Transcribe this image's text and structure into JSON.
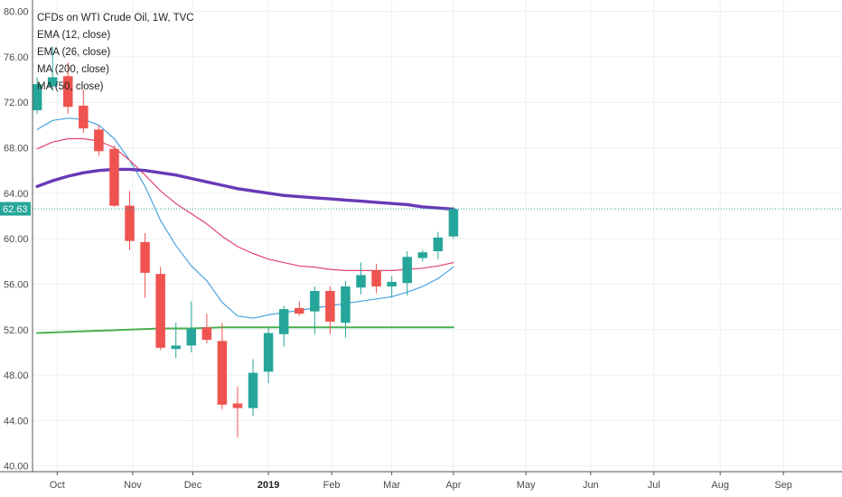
{
  "legend": [
    "CFDs on WTI Crude Oil, 1W, TVC",
    "EMA (12, close)",
    "EMA (26, close)",
    "MA (200, close)",
    "MA (50, close)"
  ],
  "colors": {
    "up": "#26a69a",
    "down": "#ef5350",
    "ema12": "#4aa3df",
    "ema26": "#e0456e",
    "ma200": "#4caf50",
    "ma50": "#673ab7",
    "price_line": "#26a69a",
    "grid": "#eceff1",
    "axis": "#555555"
  },
  "last_price_label": "62.63",
  "chart_data": {
    "type": "candlestick",
    "title": "CFDs on WTI Crude Oil, 1W, TVC",
    "ylim": [
      39.5,
      81
    ],
    "y_ticks": [
      "40.00",
      "44.00",
      "48.00",
      "52.00",
      "56.00",
      "60.00",
      "64.00",
      "68.00",
      "72.00",
      "76.00",
      "80.00"
    ],
    "x_ticks": [
      {
        "label": "Oct",
        "x": 1.3
      },
      {
        "label": "Nov",
        "x": 6.2
      },
      {
        "label": "Dec",
        "x": 10.1
      },
      {
        "label": "2019",
        "x": 15.0,
        "bold": true
      },
      {
        "label": "Feb",
        "x": 19.1
      },
      {
        "label": "Mar",
        "x": 23.0
      },
      {
        "label": "Apr",
        "x": 27.0
      },
      {
        "label": "May",
        "x": 31.7
      },
      {
        "label": "Jun",
        "x": 35.9
      },
      {
        "label": "Jul",
        "x": 40.0
      },
      {
        "label": "Aug",
        "x": 44.3
      },
      {
        "label": "Sep",
        "x": 48.4
      }
    ],
    "xlim": [
      -0.3,
      52.2
    ],
    "last_price": 62.63,
    "candles": [
      {
        "x": 0,
        "o": 71.3,
        "h": 74.2,
        "l": 71.0,
        "c": 73.6
      },
      {
        "x": 1,
        "o": 73.4,
        "h": 76.9,
        "l": 73.0,
        "c": 74.2
      },
      {
        "x": 2,
        "o": 74.3,
        "h": 75.5,
        "l": 71.0,
        "c": 71.6
      },
      {
        "x": 3,
        "o": 71.7,
        "h": 73.1,
        "l": 69.3,
        "c": 69.7
      },
      {
        "x": 4,
        "o": 69.6,
        "h": 70.0,
        "l": 67.3,
        "c": 67.7
      },
      {
        "x": 5,
        "o": 67.9,
        "h": 68.2,
        "l": 62.8,
        "c": 62.9
      },
      {
        "x": 6,
        "o": 62.9,
        "h": 64.2,
        "l": 59.0,
        "c": 59.8
      },
      {
        "x": 7,
        "o": 59.7,
        "h": 60.5,
        "l": 54.8,
        "c": 57.0
      },
      {
        "x": 8,
        "o": 56.9,
        "h": 57.5,
        "l": 50.2,
        "c": 50.4
      },
      {
        "x": 9,
        "o": 50.3,
        "h": 52.6,
        "l": 49.5,
        "c": 50.6
      },
      {
        "x": 10,
        "o": 50.6,
        "h": 54.5,
        "l": 50.0,
        "c": 52.1
      },
      {
        "x": 11,
        "o": 52.2,
        "h": 53.4,
        "l": 50.8,
        "c": 51.1
      },
      {
        "x": 12,
        "o": 51.0,
        "h": 52.6,
        "l": 45.0,
        "c": 45.4
      },
      {
        "x": 13,
        "o": 45.5,
        "h": 47.0,
        "l": 42.5,
        "c": 45.1
      },
      {
        "x": 14,
        "o": 45.1,
        "h": 49.4,
        "l": 44.4,
        "c": 48.2
      },
      {
        "x": 15,
        "o": 48.3,
        "h": 52.2,
        "l": 47.3,
        "c": 51.7
      },
      {
        "x": 16,
        "o": 51.6,
        "h": 54.1,
        "l": 50.5,
        "c": 53.8
      },
      {
        "x": 17,
        "o": 53.9,
        "h": 54.5,
        "l": 53.2,
        "c": 53.4
      },
      {
        "x": 18,
        "o": 53.6,
        "h": 55.8,
        "l": 51.6,
        "c": 55.4
      },
      {
        "x": 19,
        "o": 55.4,
        "h": 55.8,
        "l": 51.6,
        "c": 52.7
      },
      {
        "x": 20,
        "o": 52.6,
        "h": 56.3,
        "l": 51.3,
        "c": 55.8
      },
      {
        "x": 21,
        "o": 55.7,
        "h": 57.9,
        "l": 55.1,
        "c": 56.8
      },
      {
        "x": 22,
        "o": 57.2,
        "h": 57.8,
        "l": 55.2,
        "c": 55.8
      },
      {
        "x": 23,
        "o": 55.8,
        "h": 56.7,
        "l": 54.8,
        "c": 56.2
      },
      {
        "x": 24,
        "o": 56.1,
        "h": 58.9,
        "l": 55.0,
        "c": 58.4
      },
      {
        "x": 25,
        "o": 58.3,
        "h": 59.0,
        "l": 58.0,
        "c": 58.8
      },
      {
        "x": 26,
        "o": 58.9,
        "h": 60.6,
        "l": 58.2,
        "c": 60.1
      },
      {
        "x": 27,
        "o": 60.2,
        "h": 62.8,
        "l": 60.0,
        "c": 62.6
      }
    ],
    "series": [
      {
        "key": "ema12",
        "name": "EMA (12, close)",
        "width": 1.2,
        "points": [
          [
            0,
            69.6
          ],
          [
            1,
            70.4
          ],
          [
            2,
            70.6
          ],
          [
            3,
            70.5
          ],
          [
            4,
            70.0
          ],
          [
            5,
            68.8
          ],
          [
            6,
            66.9
          ],
          [
            7,
            64.6
          ],
          [
            8,
            61.6
          ],
          [
            9,
            59.4
          ],
          [
            10,
            57.6
          ],
          [
            11,
            56.3
          ],
          [
            12,
            54.4
          ],
          [
            13,
            53.2
          ],
          [
            14,
            53.0
          ],
          [
            15,
            53.3
          ],
          [
            16,
            53.5
          ],
          [
            17,
            53.7
          ],
          [
            18,
            53.9
          ],
          [
            19,
            54.1
          ],
          [
            20,
            54.3
          ],
          [
            21,
            54.5
          ],
          [
            22,
            54.7
          ],
          [
            23,
            54.9
          ],
          [
            24,
            55.3
          ],
          [
            25,
            55.8
          ],
          [
            26,
            56.5
          ],
          [
            27,
            57.5
          ]
        ]
      },
      {
        "key": "ema26",
        "name": "EMA (26, close)",
        "width": 1.2,
        "points": [
          [
            0,
            67.9
          ],
          [
            1,
            68.5
          ],
          [
            2,
            68.8
          ],
          [
            3,
            68.8
          ],
          [
            4,
            68.6
          ],
          [
            5,
            68.0
          ],
          [
            6,
            66.9
          ],
          [
            7,
            65.6
          ],
          [
            8,
            64.2
          ],
          [
            9,
            63.1
          ],
          [
            10,
            62.2
          ],
          [
            11,
            61.3
          ],
          [
            12,
            60.2
          ],
          [
            13,
            59.3
          ],
          [
            14,
            58.7
          ],
          [
            15,
            58.2
          ],
          [
            16,
            57.9
          ],
          [
            17,
            57.6
          ],
          [
            18,
            57.5
          ],
          [
            19,
            57.3
          ],
          [
            20,
            57.2
          ],
          [
            21,
            57.2
          ],
          [
            22,
            57.2
          ],
          [
            23,
            57.2
          ],
          [
            24,
            57.3
          ],
          [
            25,
            57.4
          ],
          [
            26,
            57.6
          ],
          [
            27,
            57.9
          ]
        ]
      },
      {
        "key": "ma200",
        "name": "MA (200, close)",
        "width": 2,
        "points": [
          [
            0,
            51.7
          ],
          [
            2,
            51.8
          ],
          [
            4,
            51.9
          ],
          [
            6,
            52.0
          ],
          [
            8,
            52.1
          ],
          [
            10,
            52.1
          ],
          [
            12,
            52.2
          ],
          [
            14,
            52.2
          ],
          [
            16,
            52.2
          ],
          [
            18,
            52.2
          ],
          [
            20,
            52.2
          ],
          [
            22,
            52.2
          ],
          [
            24,
            52.2
          ],
          [
            26,
            52.2
          ],
          [
            27,
            52.2
          ]
        ]
      },
      {
        "key": "ma50",
        "name": "MA (50, close)",
        "width": 3.4,
        "points": [
          [
            0,
            64.6
          ],
          [
            1,
            65.1
          ],
          [
            2,
            65.5
          ],
          [
            3,
            65.8
          ],
          [
            4,
            66.0
          ],
          [
            5,
            66.1
          ],
          [
            6,
            66.1
          ],
          [
            7,
            66.0
          ],
          [
            8,
            65.8
          ],
          [
            9,
            65.6
          ],
          [
            10,
            65.3
          ],
          [
            11,
            65.0
          ],
          [
            12,
            64.7
          ],
          [
            13,
            64.4
          ],
          [
            14,
            64.2
          ],
          [
            15,
            64.0
          ],
          [
            16,
            63.8
          ],
          [
            17,
            63.7
          ],
          [
            18,
            63.6
          ],
          [
            19,
            63.5
          ],
          [
            20,
            63.4
          ],
          [
            21,
            63.3
          ],
          [
            22,
            63.2
          ],
          [
            23,
            63.1
          ],
          [
            24,
            63.0
          ],
          [
            25,
            62.8
          ],
          [
            26,
            62.7
          ],
          [
            27,
            62.6
          ]
        ]
      }
    ]
  }
}
